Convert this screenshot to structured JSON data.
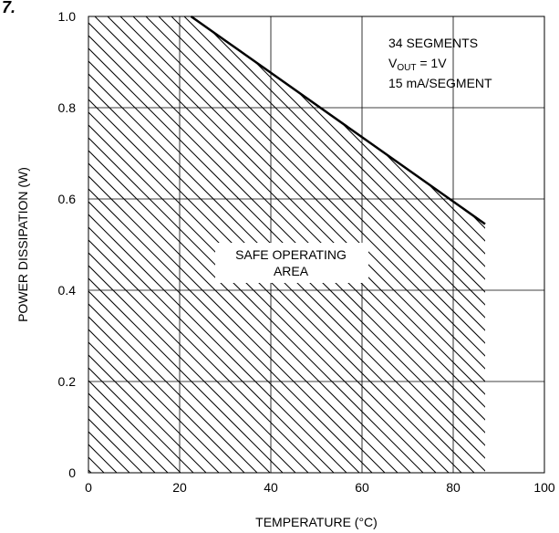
{
  "chart_data": {
    "type": "line",
    "title": "",
    "corner_mark": "7.",
    "xlabel": "TEMPERATURE (°C)",
    "ylabel": "POWER DISSIPATION (W)",
    "xlim": [
      0,
      100
    ],
    "ylim": [
      0,
      1.0
    ],
    "x_ticks": [
      "0",
      "20",
      "40",
      "60",
      "80",
      "100"
    ],
    "y_ticks": [
      "0",
      "0.2",
      "0.4",
      "0.6",
      "0.8",
      "1.0"
    ],
    "grid": true,
    "series": [
      {
        "x": [
          22.5,
          87
        ],
        "y": [
          1.0,
          0.545
        ],
        "color": "#000000"
      }
    ],
    "shaded_region": {
      "label_line1": "SAFE OPERATING",
      "label_line2": "AREA",
      "x_range": [
        0,
        87
      ]
    },
    "annotation": {
      "line1": "34 SEGMENTS",
      "line2_prefix": "V",
      "line2_sub": "OUT",
      "line2_suffix": " = 1V",
      "line3": "15 mA/SEGMENT"
    }
  }
}
